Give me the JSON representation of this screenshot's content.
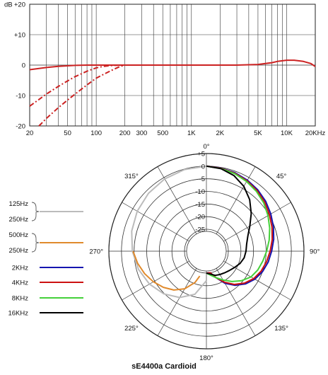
{
  "chart_data": [
    {
      "type": "line",
      "xscale": "log",
      "xlim": [
        20,
        20000
      ],
      "ylim": [
        -20,
        20
      ],
      "ylabel": "dB",
      "x_ticks": [
        20,
        50,
        100,
        200,
        300,
        500,
        1000,
        2000,
        5000,
        10000,
        20000
      ],
      "x_tick_labels": [
        "20",
        "50",
        "100",
        "200",
        "300",
        "500",
        "1K",
        "2K",
        "5K",
        "10K",
        "20KHz"
      ],
      "y_ticks": [
        20,
        10,
        0,
        -10,
        -20
      ],
      "y_tick_labels": [
        "+20",
        "+10",
        "0",
        "-10",
        "-20"
      ],
      "grid": true,
      "series": [
        {
          "style": "solid",
          "color": "#cc2222",
          "x": [
            20,
            30,
            40,
            60,
            80,
            100,
            150,
            200,
            300,
            500,
            1000,
            2000,
            3000,
            5000,
            7000,
            8000,
            10000,
            12000,
            15000,
            18000,
            20000
          ],
          "y": [
            -1.5,
            -0.8,
            -0.4,
            -0.1,
            0,
            0,
            0,
            0,
            0,
            0,
            0,
            0,
            0,
            0.2,
            0.8,
            1.2,
            1.6,
            1.6,
            1.2,
            0.5,
            -0.5
          ]
        },
        {
          "style": "dashed",
          "color": "#cc2222",
          "x": [
            20,
            30,
            40,
            50,
            60,
            80,
            100,
            120,
            150,
            180
          ],
          "y": [
            -13.5,
            -9.5,
            -7,
            -5.2,
            -3.8,
            -2,
            -0.9,
            -0.4,
            -0.1,
            0
          ]
        },
        {
          "style": "dashed",
          "color": "#cc2222",
          "x": [
            25,
            30,
            40,
            50,
            60,
            80,
            100,
            120,
            150,
            180,
            200
          ],
          "y": [
            -20,
            -17.5,
            -14,
            -11.5,
            -9.5,
            -6.5,
            -4.3,
            -3,
            -1.5,
            -0.4,
            0
          ]
        }
      ]
    },
    {
      "type": "polar",
      "title": "sE4400a  Cardioid",
      "rlim": [
        -25,
        5
      ],
      "r_ticks": [
        5,
        0,
        -5,
        -10,
        -15,
        -20,
        -25
      ],
      "r_tick_labels": [
        "+5",
        "0",
        "-5",
        "-10",
        "-15",
        "-20",
        "-25"
      ],
      "angle_ticks": [
        0,
        45,
        90,
        135,
        180,
        225,
        270,
        315
      ],
      "angle_tick_labels": [
        "0°",
        "45°",
        "90°",
        "135°",
        "180°",
        "225°",
        "270°",
        "315°"
      ],
      "legend": [
        {
          "labels": [
            "125Hz",
            "250Hz"
          ],
          "color": "#bbbbbb"
        },
        {
          "labels": [
            "500Hz",
            "250Hz"
          ],
          "color": "#e08a2c"
        },
        {
          "labels": [
            "2KHz"
          ],
          "color": "#1515b0"
        },
        {
          "labels": [
            "4KHz"
          ],
          "color": "#cc1111"
        },
        {
          "labels": [
            "8KHz"
          ],
          "color": "#44d03a"
        },
        {
          "labels": [
            "16KHz"
          ],
          "color": "#000000"
        }
      ],
      "series": [
        {
          "name": "125Hz / 250Hz",
          "color": "#bbbbbb",
          "side": "left",
          "angles": [
            0,
            15,
            30,
            45,
            60,
            75,
            90,
            105,
            120,
            135,
            150,
            165,
            180
          ],
          "values": [
            0,
            -0.2,
            -0.6,
            -1.2,
            -2,
            -3,
            -4.3,
            -5.8,
            -7.6,
            -9.8,
            -12.5,
            -16,
            -22
          ]
        },
        {
          "name": "500Hz / 250Hz",
          "color": "#e08a2c",
          "side": "left",
          "angles": [
            90,
            100,
            110,
            120,
            130,
            140,
            150,
            160,
            165
          ],
          "values": [
            -4.6,
            -6,
            -7.6,
            -9.4,
            -11.4,
            -13.6,
            -16.5,
            -20.5,
            -23.5
          ]
        },
        {
          "name": "2KHz",
          "color": "#1515b0",
          "side": "right",
          "angles": [
            0,
            10,
            20,
            30,
            40,
            50,
            60,
            70,
            80,
            90,
            100,
            110,
            120,
            130,
            140,
            150,
            160,
            170,
            180
          ],
          "values": [
            0,
            -0.2,
            -0.6,
            -1.2,
            -2,
            -3,
            -4.2,
            -5.4,
            -6.6,
            -7.8,
            -8.8,
            -10,
            -11.5,
            -13.5,
            -16,
            -19,
            -22.5,
            -25,
            -25
          ]
        },
        {
          "name": "4KHz",
          "color": "#cc1111",
          "side": "right",
          "angles": [
            0,
            10,
            20,
            30,
            40,
            50,
            60,
            70,
            80,
            90,
            100,
            110,
            120,
            130,
            140,
            150,
            160,
            170,
            180
          ],
          "values": [
            0,
            -0.3,
            -0.8,
            -1.5,
            -2.4,
            -3.5,
            -4.8,
            -6,
            -7.2,
            -8.4,
            -9.5,
            -10.6,
            -12,
            -14,
            -16.5,
            -19.5,
            -22.5,
            -25,
            -25
          ]
        },
        {
          "name": "8KHz",
          "color": "#44d03a",
          "side": "right",
          "angles": [
            0,
            10,
            20,
            30,
            40,
            50,
            60,
            70,
            80,
            90,
            100,
            110,
            120,
            130,
            140,
            150,
            160,
            170,
            180
          ],
          "values": [
            0,
            -0.4,
            -1,
            -1.8,
            -2.8,
            -4,
            -5.5,
            -7,
            -8.4,
            -9.8,
            -11,
            -12,
            -13.3,
            -15.5,
            -18,
            -20.5,
            -22.5,
            -24,
            -25
          ]
        },
        {
          "name": "16KHz",
          "color": "#000000",
          "side": "right",
          "angles": [
            0,
            10,
            20,
            30,
            40,
            50,
            60,
            70,
            80,
            90,
            100,
            110,
            120,
            130,
            140,
            150,
            160,
            170,
            180
          ],
          "values": [
            0,
            -0.5,
            -1.8,
            -4,
            -7,
            -10.5,
            -13.8,
            -16.2,
            -17.5,
            -18,
            -18.5,
            -19.5,
            -20.8,
            -21.8,
            -22.5,
            -23,
            -23.5,
            -24.5,
            -25
          ]
        }
      ]
    }
  ]
}
